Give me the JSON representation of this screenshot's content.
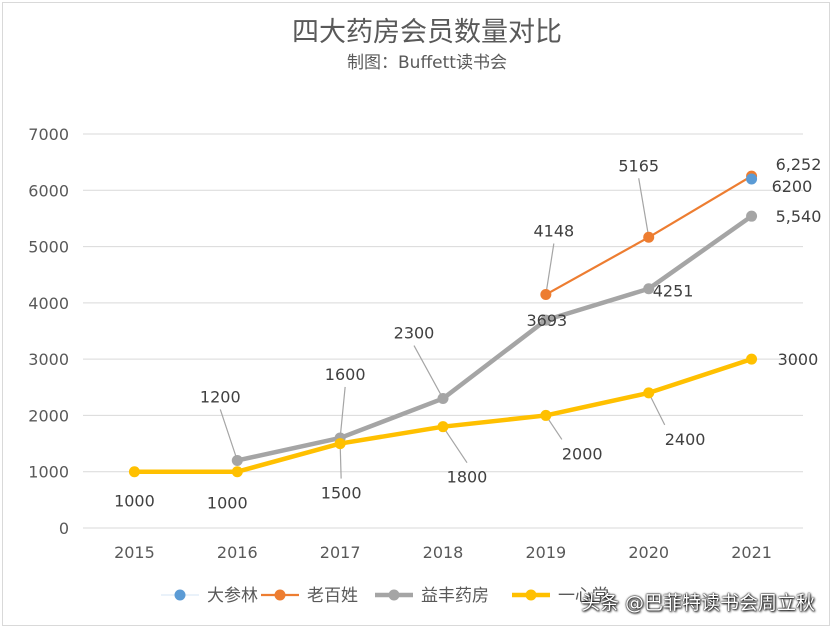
{
  "chart_data": {
    "type": "line",
    "title": "四大药房会员数量对比",
    "subtitle": "制图：Buffett读书会",
    "xlabel": "",
    "ylabel": "",
    "categories": [
      "2015",
      "2016",
      "2017",
      "2018",
      "2019",
      "2020",
      "2021"
    ],
    "ylim": [
      0,
      7000
    ],
    "yticks": [
      "0",
      "1000",
      "2000",
      "3000",
      "4000",
      "5000",
      "6000",
      "7000"
    ],
    "grid": true,
    "legend_position": "bottom",
    "series": [
      {
        "name": "大参林",
        "color": "#5b9bd5",
        "values": [
          null,
          null,
          null,
          null,
          null,
          null,
          6200
        ],
        "labels": [
          null,
          null,
          null,
          null,
          null,
          null,
          "6200"
        ]
      },
      {
        "name": "老百姓",
        "color": "#ed7d31",
        "values": [
          null,
          null,
          null,
          null,
          4148,
          5165,
          6252
        ],
        "labels": [
          null,
          null,
          null,
          null,
          "4148",
          "5165",
          "6,252"
        ]
      },
      {
        "name": "益丰药房",
        "color": "#a5a5a5",
        "values": [
          null,
          1200,
          1600,
          2300,
          3693,
          4251,
          5540
        ],
        "labels": [
          null,
          "1200",
          "1600",
          "2300",
          "3693",
          "4251",
          "5,540"
        ]
      },
      {
        "name": "一心堂",
        "color": "#ffc000",
        "values": [
          1000,
          1000,
          1500,
          1800,
          2000,
          2400,
          3000
        ],
        "labels": [
          "1000",
          "1000",
          "1500",
          "1800",
          "2000",
          "2400",
          "3000"
        ]
      }
    ]
  },
  "watermark": "头条 @巴菲特读书会周立秋"
}
